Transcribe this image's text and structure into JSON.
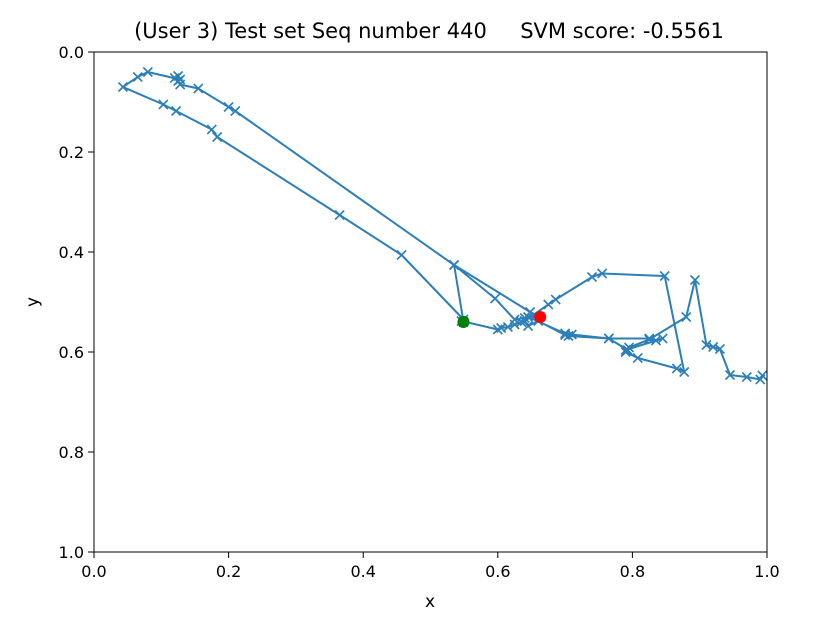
{
  "chart_data": {
    "type": "line",
    "title": "(User 3) Test set Seq number 440     SVM score: -0.5561",
    "xlabel": "x",
    "ylabel": "y",
    "xlim": [
      0.0,
      1.0
    ],
    "ylim": [
      1.0,
      0.0
    ],
    "y_inverted": true,
    "grid": false,
    "legend": "none",
    "x_ticks": [
      "0.0",
      "0.2",
      "0.4",
      "0.6",
      "0.8",
      "1.0"
    ],
    "y_ticks": [
      "0.0",
      "0.2",
      "0.4",
      "0.6",
      "0.8",
      "1.0"
    ],
    "line_color": "#2c7fb8",
    "marker": "x",
    "series": [
      {
        "x": [
          0.549,
          0.535,
          0.648,
          0.663,
          0.64,
          0.625,
          0.596,
          0.535,
          0.21,
          0.2,
          0.155,
          0.128,
          0.125,
          0.12,
          0.125,
          0.128,
          0.08,
          0.065,
          0.043,
          0.103,
          0.122,
          0.175,
          0.183,
          0.365,
          0.457,
          0.549,
          0.549,
          0.546,
          0.6,
          0.605,
          0.615,
          0.625,
          0.635,
          0.645,
          0.7,
          0.71,
          0.765,
          0.825,
          0.835,
          0.845,
          0.79,
          0.79,
          0.808,
          0.866,
          0.877,
          0.848,
          0.755,
          0.74,
          0.686,
          0.675,
          0.64,
          0.645,
          0.66,
          0.7,
          0.705,
          0.765,
          0.793,
          0.795,
          0.825,
          0.88,
          0.893,
          0.91,
          0.92,
          0.93,
          0.945,
          0.97,
          0.99,
          0.993
        ],
        "y": [
          0.54,
          0.426,
          0.52,
          0.53,
          0.532,
          0.535,
          0.493,
          0.426,
          0.118,
          0.11,
          0.073,
          0.065,
          0.058,
          0.052,
          0.048,
          0.055,
          0.04,
          0.05,
          0.07,
          0.105,
          0.118,
          0.155,
          0.17,
          0.326,
          0.406,
          0.535,
          0.54,
          0.538,
          0.555,
          0.552,
          0.55,
          0.545,
          0.54,
          0.53,
          0.563,
          0.565,
          0.573,
          0.573,
          0.577,
          0.573,
          0.596,
          0.6,
          0.612,
          0.633,
          0.64,
          0.448,
          0.443,
          0.45,
          0.495,
          0.505,
          0.538,
          0.548,
          0.538,
          0.566,
          0.568,
          0.573,
          0.596,
          0.591,
          0.575,
          0.53,
          0.456,
          0.586,
          0.59,
          0.594,
          0.646,
          0.65,
          0.655,
          0.647
        ]
      }
    ],
    "end_points": [
      {
        "label": "start",
        "x": 0.549,
        "y": 0.54,
        "color": "#008000"
      },
      {
        "label": "end",
        "x": 0.663,
        "y": 0.53,
        "color": "#ff0000"
      }
    ]
  }
}
